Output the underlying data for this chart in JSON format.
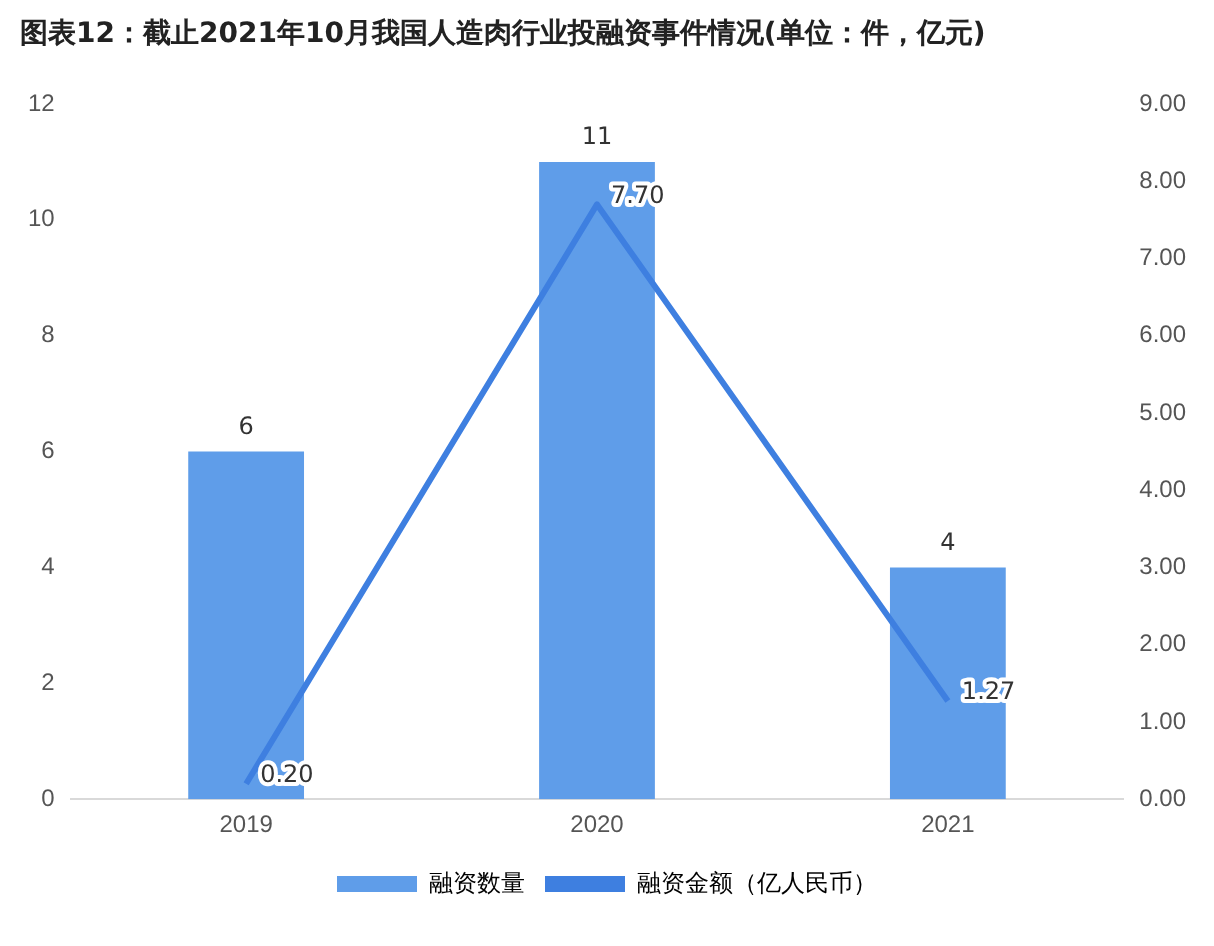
{
  "chart_data": {
    "type": "bar",
    "title": "图表12：截止2021年10月我国人造肉行业投融资事件情况(单位：件，亿元)",
    "categories": [
      "2019",
      "2020",
      "2021"
    ],
    "series": [
      {
        "name": "融资数量",
        "color": "#5f9de9",
        "values": [
          6,
          11,
          4
        ],
        "data_labels": true
      },
      {
        "name": "融资金额（亿人民币）",
        "type": "line",
        "axis": "y2",
        "color": "#3e7fe0",
        "values": [
          0.2,
          7.7,
          1.27
        ],
        "value_labels": [
          "0.20",
          "7.70",
          "1.27"
        ]
      }
    ],
    "ylim": [
      0,
      12
    ],
    "yticks": [
      0,
      2,
      4,
      6,
      8,
      10,
      12
    ],
    "y2lim": [
      0,
      9
    ],
    "y2ticks": [
      {
        "value": 0,
        "label": "0.00"
      },
      {
        "value": 1,
        "label": "1.00"
      },
      {
        "value": 2,
        "label": "2.00"
      },
      {
        "value": 3,
        "label": "3.00"
      },
      {
        "value": 4,
        "label": "4.00"
      },
      {
        "value": 5,
        "label": "5.00"
      },
      {
        "value": 6,
        "label": "6.00"
      },
      {
        "value": 7,
        "label": "7.00"
      },
      {
        "value": 8,
        "label": "8.00"
      },
      {
        "value": 9,
        "label": "9.00"
      }
    ],
    "grid": false,
    "legend": "bottom",
    "marker": "none",
    "line_style": "solid"
  }
}
